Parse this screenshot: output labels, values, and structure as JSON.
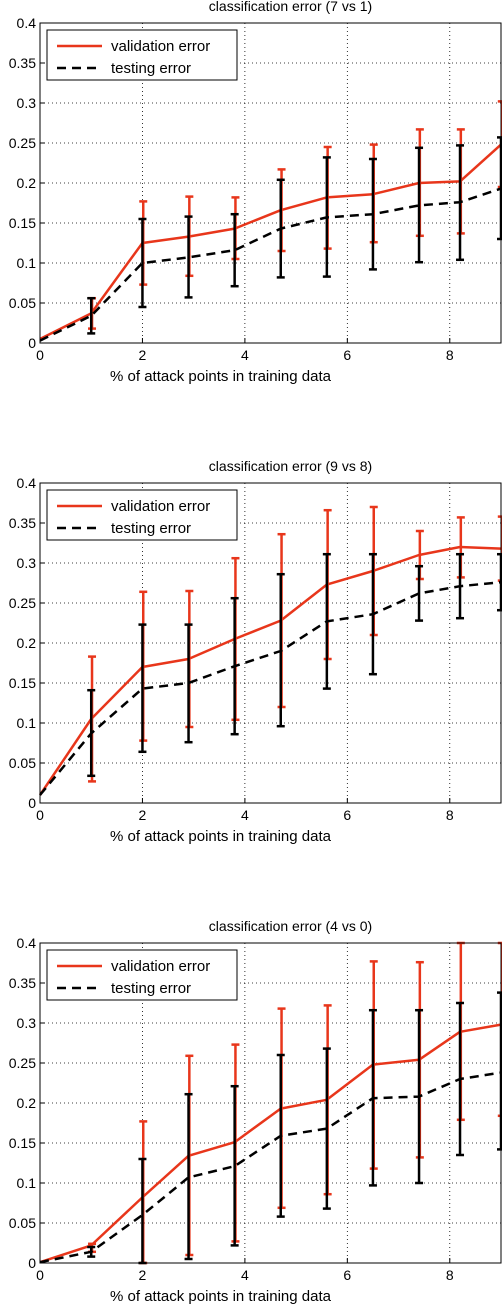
{
  "colors": {
    "validation": "#e8361b",
    "testing": "#000000"
  },
  "chart_data": [
    {
      "type": "line",
      "title": "classification error (7 vs 1)",
      "xlabel": "% of attack points in training data",
      "ylabel": "",
      "xlim": [
        0,
        9
      ],
      "ylim": [
        0,
        0.4
      ],
      "x_ticks": [
        "0",
        "2",
        "4",
        "6",
        "8"
      ],
      "y_ticks": [
        "0",
        "0.05",
        "0.1",
        "0.15",
        "0.2",
        "0.25",
        "0.3",
        "0.35",
        "0.4"
      ],
      "grid": true,
      "legend_position": "top-left",
      "x": [
        0,
        1,
        2,
        2.9,
        3.8,
        4.7,
        5.6,
        6.5,
        7.4,
        8.2,
        9.0
      ],
      "series": [
        {
          "name": "validation error",
          "style": "solid",
          "values": [
            0.005,
            0.037,
            0.125,
            0.133,
            0.143,
            0.166,
            0.182,
            0.186,
            0.2,
            0.202,
            0.248
          ],
          "err_low": [
            0,
            0.018,
            0.073,
            0.084,
            0.105,
            0.115,
            0.118,
            0.126,
            0.134,
            0.137,
            0.195
          ],
          "err_high": [
            0.012,
            0.056,
            0.177,
            0.183,
            0.182,
            0.217,
            0.245,
            0.248,
            0.267,
            0.267,
            0.302
          ]
        },
        {
          "name": "testing error",
          "style": "dashed",
          "values": [
            0.003,
            0.034,
            0.1,
            0.107,
            0.116,
            0.143,
            0.157,
            0.161,
            0.172,
            0.176,
            0.193
          ],
          "err_low": [
            0,
            0.012,
            0.045,
            0.057,
            0.071,
            0.082,
            0.083,
            0.092,
            0.101,
            0.104,
            0.13
          ],
          "err_high": [
            0.01,
            0.056,
            0.155,
            0.158,
            0.161,
            0.204,
            0.232,
            0.23,
            0.244,
            0.247,
            0.257
          ]
        }
      ]
    },
    {
      "type": "line",
      "title": "classification error (9 vs 8)",
      "xlabel": "% of attack points in training data",
      "ylabel": "",
      "xlim": [
        0,
        9
      ],
      "ylim": [
        0,
        0.4
      ],
      "x_ticks": [
        "0",
        "2",
        "4",
        "6",
        "8"
      ],
      "y_ticks": [
        "0",
        "0.05",
        "0.1",
        "0.15",
        "0.2",
        "0.25",
        "0.3",
        "0.35",
        "0.4"
      ],
      "grid": true,
      "legend_position": "top-left",
      "x": [
        0,
        1,
        2,
        2.9,
        3.8,
        4.7,
        5.6,
        6.5,
        7.4,
        8.2,
        9.0
      ],
      "series": [
        {
          "name": "validation error",
          "style": "solid",
          "values": [
            0.01,
            0.105,
            0.17,
            0.18,
            0.205,
            0.228,
            0.273,
            0.29,
            0.31,
            0.32,
            0.318
          ],
          "err_low": [
            0,
            0.027,
            0.078,
            0.095,
            0.104,
            0.12,
            0.18,
            0.21,
            0.28,
            0.282,
            0.278
          ],
          "err_high": [
            0.034,
            0.183,
            0.264,
            0.265,
            0.306,
            0.336,
            0.366,
            0.37,
            0.34,
            0.357,
            0.358
          ]
        },
        {
          "name": "testing error",
          "style": "dashed",
          "values": [
            0.01,
            0.087,
            0.143,
            0.15,
            0.171,
            0.19,
            0.227,
            0.236,
            0.262,
            0.271,
            0.276
          ],
          "err_low": [
            0,
            0.034,
            0.064,
            0.076,
            0.086,
            0.096,
            0.143,
            0.161,
            0.228,
            0.231,
            0.241
          ],
          "err_high": [
            0.02,
            0.141,
            0.223,
            0.223,
            0.256,
            0.286,
            0.311,
            0.311,
            0.296,
            0.311,
            0.311
          ]
        }
      ]
    },
    {
      "type": "line",
      "title": "classification error (4 vs 0)",
      "xlabel": "% of attack points in training data",
      "ylabel": "",
      "xlim": [
        0,
        9
      ],
      "ylim": [
        0,
        0.4
      ],
      "x_ticks": [
        "0",
        "2",
        "4",
        "6",
        "8"
      ],
      "y_ticks": [
        "0",
        "0.05",
        "0.1",
        "0.15",
        "0.2",
        "0.25",
        "0.3",
        "0.35",
        "0.4"
      ],
      "grid": true,
      "legend_position": "top-left",
      "x": [
        0,
        1,
        2,
        2.9,
        3.8,
        4.7,
        5.6,
        6.5,
        7.4,
        8.2,
        9.0
      ],
      "series": [
        {
          "name": "validation error",
          "style": "solid",
          "values": [
            0.001,
            0.022,
            0.082,
            0.134,
            0.151,
            0.193,
            0.204,
            0.248,
            0.254,
            0.289,
            0.298
          ],
          "err_low": [
            0,
            0.014,
            0.0,
            0.01,
            0.027,
            0.069,
            0.086,
            0.118,
            0.132,
            0.179,
            0.184
          ],
          "err_high": [
            0.002,
            0.024,
            0.177,
            0.259,
            0.273,
            0.318,
            0.322,
            0.377,
            0.376,
            0.4,
            0.4
          ]
        },
        {
          "name": "testing error",
          "style": "dashed",
          "values": [
            0.001,
            0.014,
            0.06,
            0.107,
            0.121,
            0.159,
            0.168,
            0.206,
            0.208,
            0.23,
            0.238
          ],
          "err_low": [
            0,
            0.008,
            0.0,
            0.005,
            0.022,
            0.058,
            0.068,
            0.097,
            0.1,
            0.135,
            0.142
          ],
          "err_high": [
            0.002,
            0.02,
            0.13,
            0.211,
            0.221,
            0.26,
            0.268,
            0.316,
            0.316,
            0.325,
            0.338
          ]
        }
      ]
    }
  ]
}
